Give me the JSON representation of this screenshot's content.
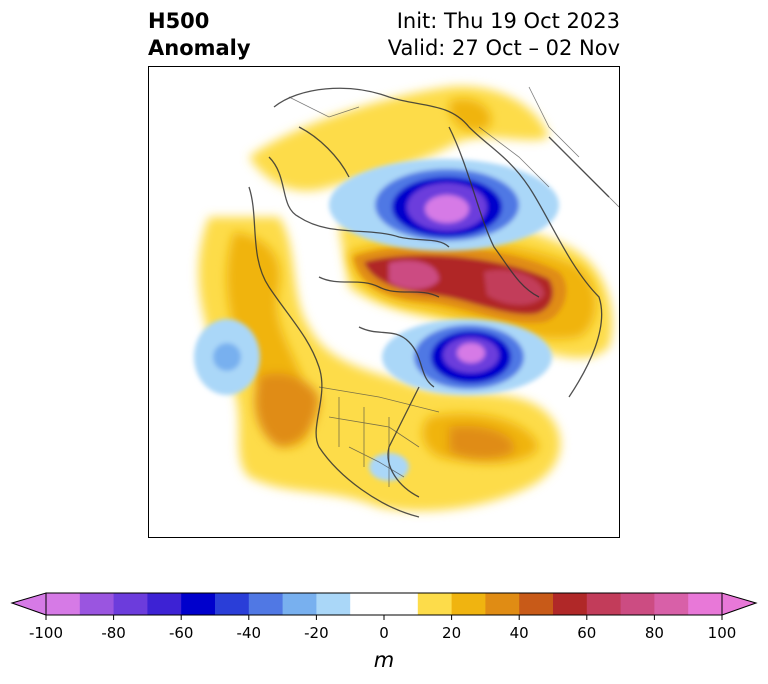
{
  "title": {
    "left_line1": "H500",
    "left_line2": "Anomaly",
    "right_line1": "Init: Thu 19 Oct 2023",
    "right_line2": "Valid: 27 Oct – 02 Nov"
  },
  "map": {
    "projection": "north-polar stereographic (North America centered)",
    "features": [
      "negative-anomaly-center-siberia",
      "positive-anomaly-ridge-arctic-ocean",
      "negative-anomaly-center-northern-canada",
      "negative-anomaly-north-pacific",
      "positive-anomaly-western-north-america",
      "positive-anomaly-western-atlantic",
      "negative-anomaly-eastern-us"
    ]
  },
  "colorbar": {
    "unit": "m",
    "ticks": [
      "-100",
      "-80",
      "-60",
      "-40",
      "-20",
      "0",
      "20",
      "40",
      "60",
      "80",
      "100"
    ],
    "levels": [
      -100,
      -90,
      -80,
      -70,
      -60,
      -50,
      -40,
      -30,
      -20,
      -10,
      10,
      20,
      30,
      40,
      50,
      60,
      70,
      80,
      90,
      100
    ],
    "colors": [
      "#d67ae6",
      "#9a55e0",
      "#6c3cdc",
      "#3d22d4",
      "#0000cc",
      "#2a3ed8",
      "#5078e4",
      "#78b0ef",
      "#aad7f8",
      "#ffffff",
      "#fddc4a",
      "#f0b410",
      "#e08c14",
      "#c85a18",
      "#b02828",
      "#c23c5a",
      "#cc4c82",
      "#d860a8",
      "#e878d8"
    ],
    "under_color": "#d67ae6",
    "over_color": "#e878d8"
  }
}
